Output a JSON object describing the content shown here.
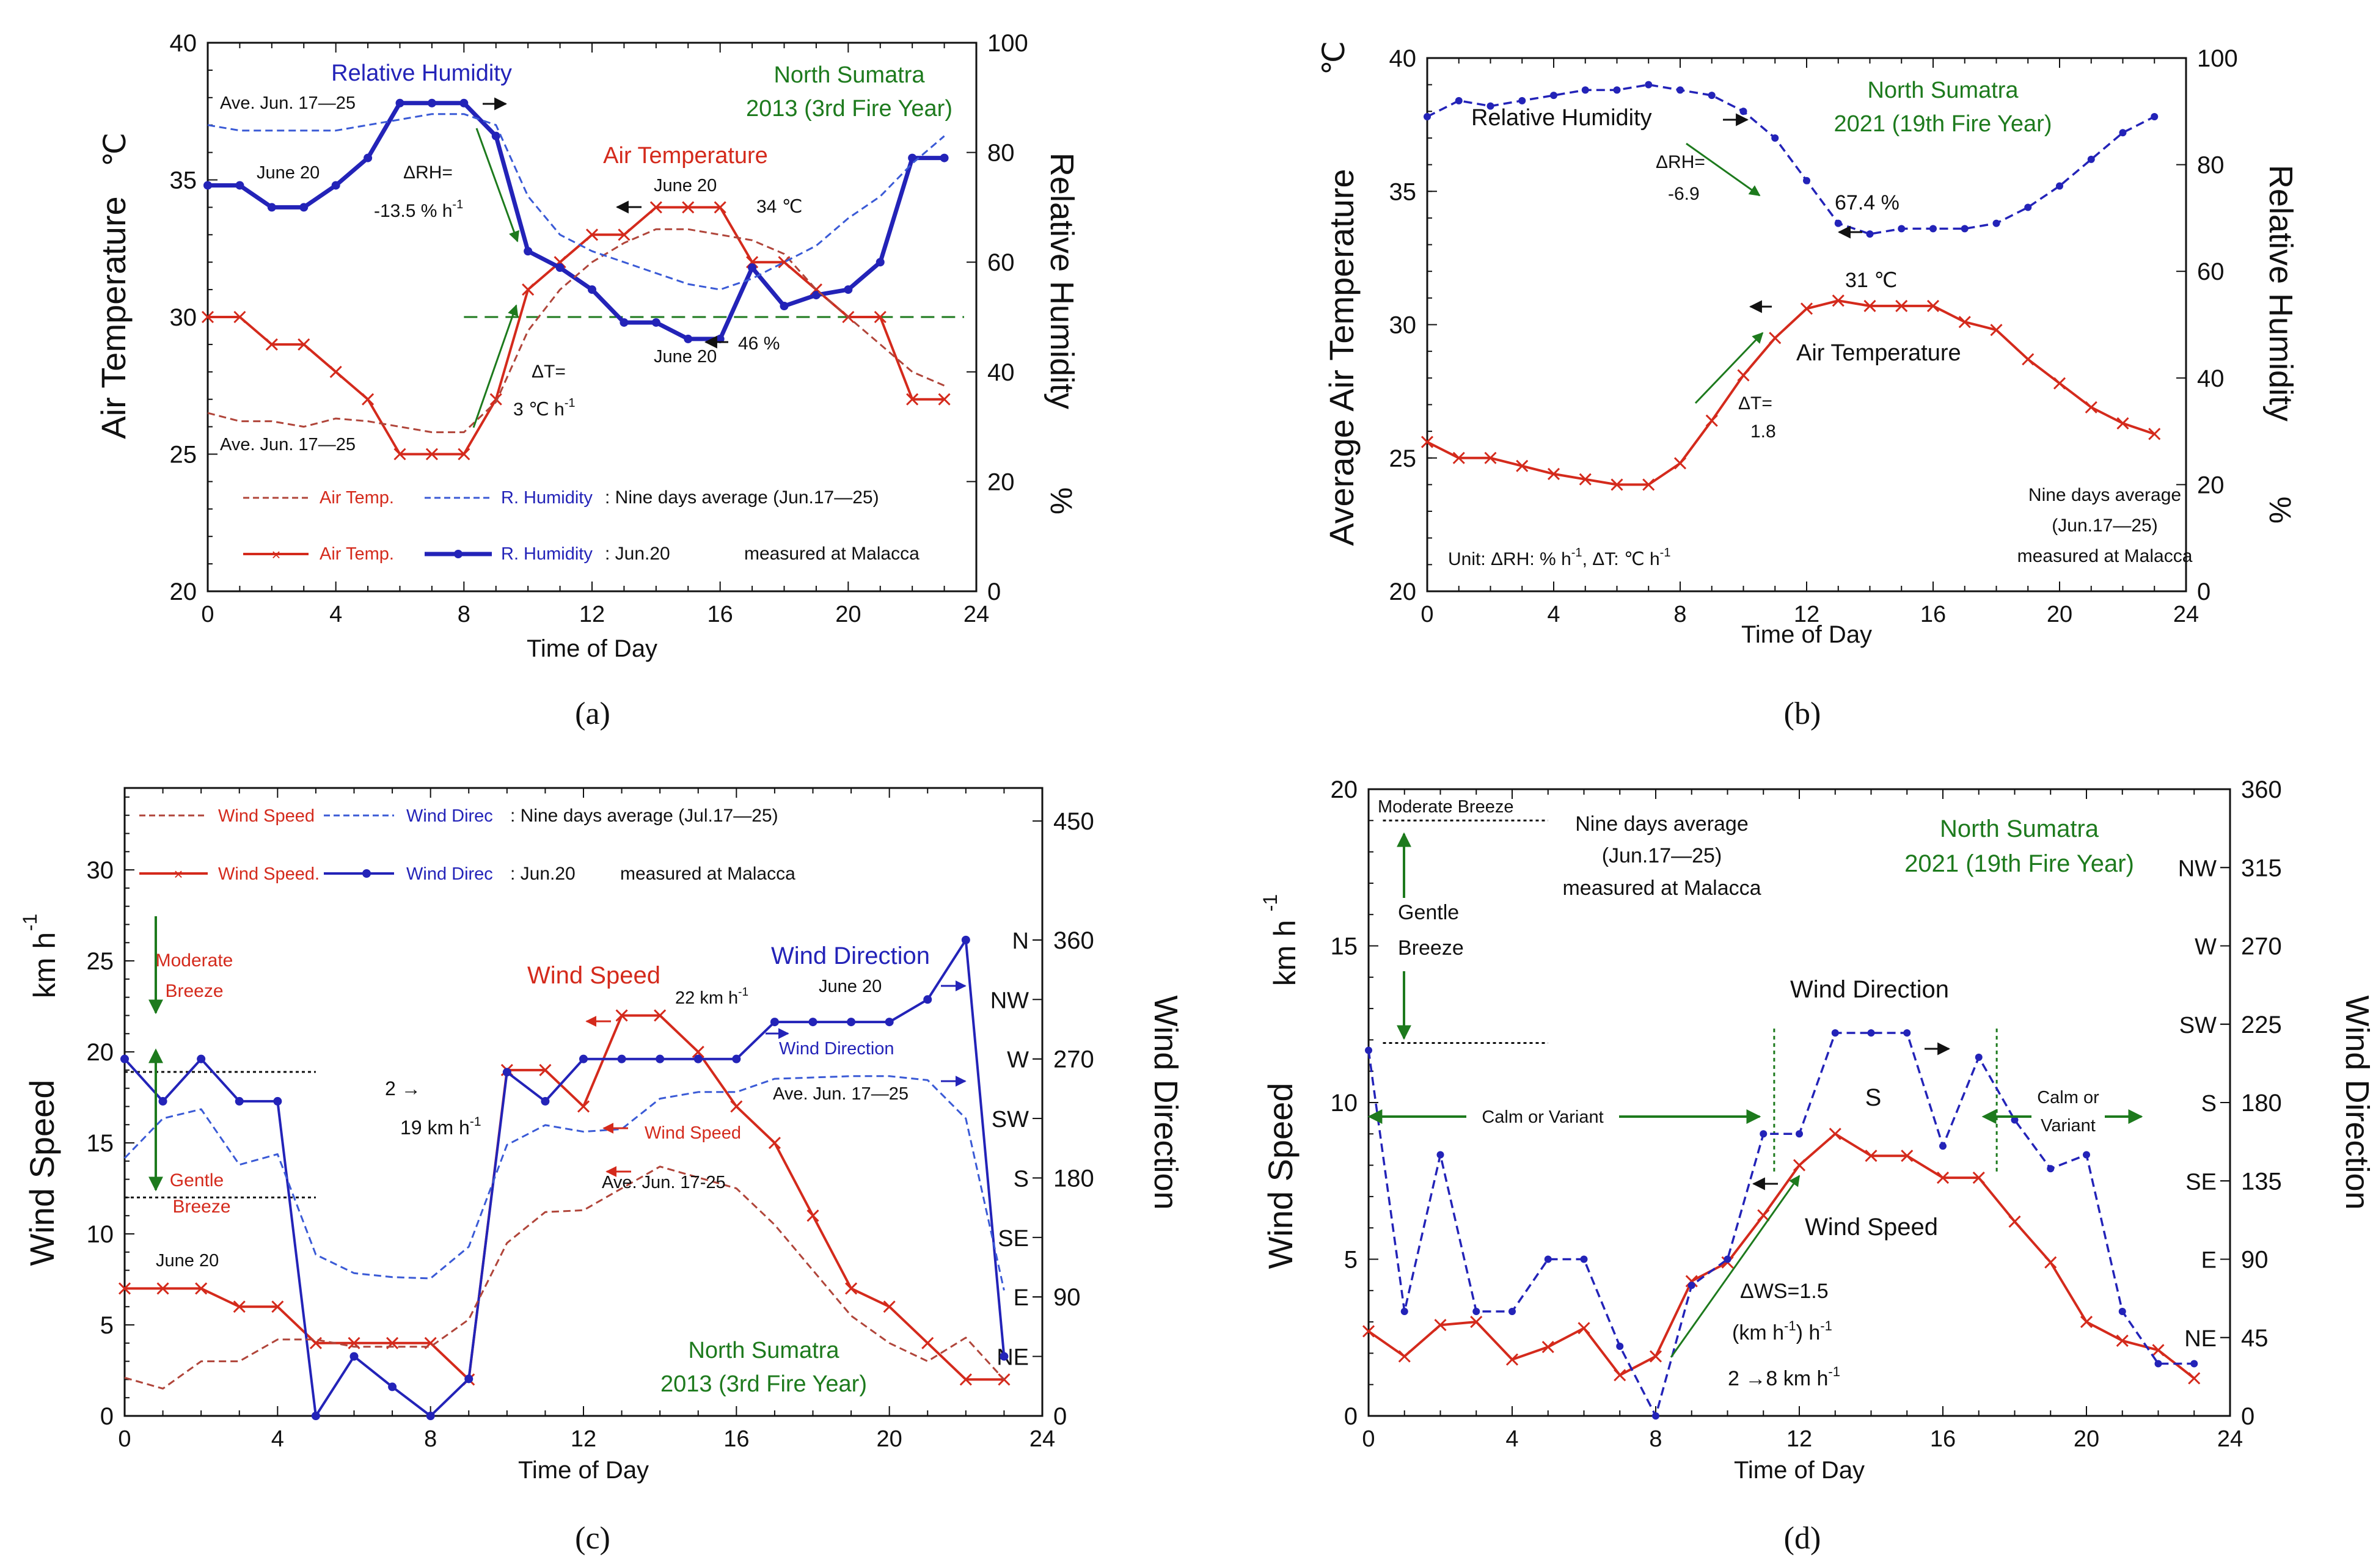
{
  "colors": {
    "red": "#d42a1c",
    "blue": "#2323b8",
    "green": "#1d7a1d",
    "avg_red": "#b0453a",
    "avg_blue": "#3a5ad6",
    "black": "#111111"
  },
  "chart_data": [
    {
      "id": "a",
      "type": "line",
      "panel_label": "(a)",
      "xlabel": "Time of Day",
      "ylabel": "Air Temperature",
      "ylabel_unit": "℃",
      "y2label": "Relative Humidity",
      "y2label_unit": "%",
      "xlim": [
        0,
        24
      ],
      "ylim": [
        20,
        40
      ],
      "y2lim": [
        0,
        100
      ],
      "xticks": [
        "0",
        "4",
        "8",
        "12",
        "16",
        "20",
        "24"
      ],
      "yticks": [
        "20",
        "25",
        "30",
        "35",
        "40"
      ],
      "y2ticks": [
        "0",
        "20",
        "40",
        "60",
        "80",
        "100"
      ],
      "x": [
        0,
        1,
        2,
        3,
        4,
        5,
        6,
        7,
        8,
        9,
        10,
        11,
        12,
        13,
        14,
        15,
        16,
        17,
        18,
        19,
        20,
        21,
        22,
        23
      ],
      "series": [
        {
          "name": "Air Temp. (Jun.20)",
          "axis": "left",
          "style": "solid-x",
          "color": "red",
          "values": [
            30,
            30,
            29,
            29,
            28,
            27,
            25,
            25,
            25,
            27,
            31,
            32,
            33,
            33,
            34,
            34,
            34,
            32,
            32,
            31,
            30,
            30,
            27,
            27
          ]
        },
        {
          "name": "R. Humidity (Jun.20)",
          "axis": "right",
          "style": "solid-dot",
          "color": "blue",
          "values": [
            74,
            74,
            70,
            70,
            74,
            79,
            89,
            89,
            89,
            83,
            62,
            59,
            55,
            49,
            49,
            46,
            46,
            59,
            52,
            54,
            55,
            60,
            79,
            79
          ]
        },
        {
          "name": "Air Temp. (nine days average)",
          "axis": "left",
          "style": "dashed",
          "color": "avg_red",
          "values": [
            26.5,
            26.2,
            26.2,
            26.0,
            26.3,
            26.2,
            26.0,
            25.8,
            25.8,
            26.9,
            29.5,
            31.0,
            32.0,
            32.7,
            33.2,
            33.2,
            33.0,
            32.8,
            32.3,
            31.0,
            30.0,
            29.0,
            28.0,
            27.5
          ]
        },
        {
          "name": "R. Humidity (nine days average)",
          "axis": "right",
          "style": "dashed",
          "color": "avg_blue",
          "values": [
            85,
            84,
            84,
            84,
            84,
            85,
            86,
            87,
            87,
            85,
            72,
            65,
            62,
            60,
            58,
            56,
            55,
            57,
            60,
            63,
            68,
            72,
            78,
            83
          ]
        }
      ],
      "hline": {
        "axis": "left",
        "value": 30,
        "color": "green"
      },
      "annotations": {
        "title_rh": "Relative Humidity",
        "title_at": "Air Temperature",
        "region_1": "North Sumatra",
        "region_2": "2013 (3rd Fire Year)",
        "ave_top": "Ave. Jun. 17—25",
        "ave_bottom": "Ave. Jun. 17—25",
        "june20_a": "June 20",
        "june20_b": "June 20",
        "june20_c": "June 20",
        "drh_1": "ΔRH=",
        "drh_2": "-13.5 % h",
        "drh_sup": "-1",
        "dt_1": "ΔT=",
        "dt_2": "3 ℃ h",
        "dt_sup": "-1",
        "peak_t": "34 ℃",
        "min_rh": "46 %",
        "legend_avg_t": "Air Temp.",
        "legend_avg_rh": "R. Humidity",
        "legend_avg_txt": ": Nine days average (Jun.17—25)",
        "legend_day_t": "Air Temp.",
        "legend_day_rh": "R. Humidity",
        "legend_day_txt": ": Jun.20",
        "measured": "measured at Malacca"
      }
    },
    {
      "id": "b",
      "type": "line",
      "panel_label": "(b)",
      "xlabel": "Time of Day",
      "ylabel": "Average Air Temperature",
      "ylabel_unit": "℃",
      "y2label": "Relative Humidity",
      "y2label_unit": "%",
      "xlim": [
        0,
        24
      ],
      "ylim": [
        20,
        40
      ],
      "y2lim": [
        0,
        100
      ],
      "xticks": [
        "0",
        "4",
        "8",
        "12",
        "16",
        "20",
        "24"
      ],
      "yticks": [
        "20",
        "25",
        "30",
        "35",
        "40"
      ],
      "y2ticks": [
        "0",
        "20",
        "40",
        "60",
        "80",
        "100"
      ],
      "x": [
        0,
        1,
        2,
        3,
        4,
        5,
        6,
        7,
        8,
        9,
        10,
        11,
        12,
        13,
        14,
        15,
        16,
        17,
        18,
        19,
        20,
        21,
        22,
        23
      ],
      "series": [
        {
          "name": "Air Temperature",
          "axis": "left",
          "style": "solid-x",
          "color": "red",
          "values": [
            25.6,
            25.0,
            25.0,
            24.7,
            24.4,
            24.2,
            24.0,
            24.0,
            24.8,
            26.4,
            28.1,
            29.5,
            30.6,
            30.9,
            30.7,
            30.7,
            30.7,
            30.1,
            29.8,
            28.7,
            27.8,
            26.9,
            26.3,
            25.9
          ]
        },
        {
          "name": "Relative Humidity",
          "axis": "right",
          "style": "dashed-dot",
          "color": "blue",
          "values": [
            89,
            92,
            91,
            92,
            93,
            94,
            94,
            95,
            94,
            93,
            90,
            85,
            77,
            69,
            67,
            68,
            68,
            68,
            69,
            72,
            76,
            81,
            86,
            89
          ]
        }
      ],
      "annotations": {
        "region_1": "North Sumatra",
        "region_2": "2021 (19th Fire Year)",
        "title_rh": "Relative Humidity",
        "title_at": "Air Temperature",
        "drh_1": "ΔRH=",
        "drh_2": "-6.9",
        "dt_1": "ΔT=",
        "dt_2": "1.8",
        "min_rh": "67.4 %",
        "peak_t": "31 ℃",
        "unit_note": "Unit: ΔRH:  % h",
        "unit_sup1": "-1",
        "unit_note_2": ", ΔT: ℃ h",
        "unit_sup2": "-1",
        "avg_1": "Nine days average",
        "avg_2": "(Jun.17—25)",
        "measured": "measured at Malacca"
      }
    },
    {
      "id": "c",
      "type": "line",
      "panel_label": "(c)",
      "xlabel": "Time of Day",
      "ylabel": "Wind Speed",
      "ylabel_unit": "km h",
      "y2label": "Wind Direction",
      "xlim": [
        0,
        24
      ],
      "ylim": [
        0,
        34.5
      ],
      "y2lim": [
        0,
        475
      ],
      "xticks": [
        "0",
        "4",
        "8",
        "12",
        "16",
        "20",
        "24"
      ],
      "yticks": [
        "0",
        "5",
        "10",
        "15",
        "20",
        "25",
        "30"
      ],
      "y2ticks": [
        "0",
        "90",
        "180",
        "270",
        "360",
        "450"
      ],
      "compass": [
        {
          "label": "NE",
          "deg": 45
        },
        {
          "label": "E",
          "deg": 90
        },
        {
          "label": "SE",
          "deg": 135
        },
        {
          "label": "S",
          "deg": 180
        },
        {
          "label": "SW",
          "deg": 225
        },
        {
          "label": "W",
          "deg": 270
        },
        {
          "label": "NW",
          "deg": 315
        },
        {
          "label": "N",
          "deg": 360
        }
      ],
      "x": [
        0,
        1,
        2,
        3,
        4,
        5,
        6,
        7,
        8,
        9,
        10,
        11,
        12,
        13,
        14,
        15,
        16,
        17,
        18,
        19,
        20,
        21,
        22,
        23
      ],
      "series": [
        {
          "name": "Wind Speed (Jun.20)",
          "axis": "left",
          "style": "solid-x",
          "color": "red",
          "values": [
            7,
            7,
            7,
            6,
            6,
            4,
            4,
            4,
            4,
            2,
            19,
            19,
            17,
            22,
            22,
            20,
            17,
            15,
            11,
            7,
            6,
            4,
            2,
            2
          ]
        },
        {
          "name": "Wind Direc (Jun.20)",
          "axis": "right",
          "style": "solid-dot",
          "color": "blue",
          "values": [
            270,
            238,
            270,
            238,
            238,
            0,
            45,
            22,
            0,
            28,
            260,
            238,
            270,
            270,
            270,
            270,
            270,
            298,
            298,
            298,
            298,
            315,
            360,
            45
          ]
        },
        {
          "name": "Wind Speed (nine days average)",
          "axis": "left",
          "style": "dashed",
          "color": "avg_red",
          "values": [
            2.1,
            1.5,
            3.0,
            3.0,
            4.2,
            4.2,
            3.8,
            3.8,
            3.8,
            5.3,
            9.5,
            11.2,
            11.3,
            12.5,
            13.7,
            13.1,
            12.5,
            10.5,
            8.0,
            5.5,
            4.0,
            3.0,
            4.3,
            2.0
          ]
        },
        {
          "name": "Wind Direc (nine days average)",
          "axis": "right",
          "style": "dashed",
          "color": "avg_blue",
          "values": [
            195,
            225,
            232,
            190,
            198,
            122,
            108,
            105,
            104,
            128,
            205,
            220,
            215,
            217,
            240,
            245,
            245,
            255,
            256,
            257,
            257,
            254,
            225,
            95
          ]
        }
      ],
      "hlines": [
        {
          "axis": "left",
          "value": 18.9,
          "x1": 0,
          "x2": 5
        },
        {
          "axis": "left",
          "value": 12,
          "x1": 0,
          "x2": 5
        }
      ],
      "annotations": {
        "legend_avg_ws": "Wind Speed",
        "legend_avg_wd": "Wind Direc",
        "legend_avg_txt": ": Nine days average (Jul.17—25)",
        "legend_day_ws": "Wind Speed.",
        "legend_day_wd": "Wind Direc",
        "legend_day_txt": ": Jun.20",
        "measured": "measured at Malacca",
        "moderate_1": "Moderate",
        "moderate_2": "Breeze",
        "gentle_1": "Gentle",
        "gentle_2": "Breeze",
        "title_ws": "Wind Speed",
        "title_ws_small": "Wind Speed",
        "title_wd": "Wind Direction",
        "title_wd_small": "Wind Direction",
        "june20_ws": "June 20",
        "june20_wd": "June 20",
        "peak": "22 km h",
        "peak_sup": "-1",
        "jump_1": "2 →",
        "jump_2": "19 km h",
        "jump_sup": "-1",
        "ave_wd": "Ave. Jun. 17—25",
        "ave_ws": "Ave. Jun. 17-25",
        "region_1": "North Sumatra",
        "region_2": "2013 (3rd Fire Year)",
        "ylabel_sup": "-1"
      }
    },
    {
      "id": "d",
      "type": "line",
      "panel_label": "(d)",
      "xlabel": "Time of Day",
      "ylabel": "Wind Speed",
      "ylabel_unit": "km h",
      "y2label": "Wind Direction",
      "xlim": [
        0,
        24
      ],
      "ylim": [
        0,
        20
      ],
      "y2lim": [
        0,
        360
      ],
      "xticks": [
        "0",
        "4",
        "8",
        "12",
        "16",
        "20",
        "24"
      ],
      "yticks": [
        "0",
        "5",
        "10",
        "15",
        "20"
      ],
      "y2ticks": [
        "0",
        "45",
        "90",
        "135",
        "180",
        "225",
        "270",
        "315",
        "360"
      ],
      "compass": [
        {
          "label": "NE",
          "deg": 45
        },
        {
          "label": "E",
          "deg": 90
        },
        {
          "label": "SE",
          "deg": 135
        },
        {
          "label": "S",
          "deg": 180
        },
        {
          "label": "SW",
          "deg": 225
        },
        {
          "label": "W",
          "deg": 270
        },
        {
          "label": "NW",
          "deg": 315
        }
      ],
      "x": [
        0,
        1,
        2,
        3,
        4,
        5,
        6,
        7,
        8,
        9,
        10,
        11,
        12,
        13,
        14,
        15,
        16,
        17,
        18,
        19,
        20,
        21,
        22,
        23
      ],
      "series": [
        {
          "name": "Wind Speed",
          "axis": "left",
          "style": "solid-x",
          "color": "red",
          "values": [
            2.7,
            1.9,
            2.9,
            3.0,
            1.8,
            2.2,
            2.8,
            1.3,
            1.9,
            4.3,
            4.9,
            6.4,
            8.0,
            9.0,
            8.3,
            8.3,
            7.6,
            7.6,
            6.2,
            4.9,
            3.0,
            2.4,
            2.1,
            1.2
          ]
        },
        {
          "name": "Wind Direction",
          "axis": "right",
          "style": "dashed-dot",
          "color": "blue",
          "values": [
            210,
            60,
            150,
            60,
            60,
            90,
            90,
            40,
            0,
            75,
            90,
            162,
            162,
            220,
            220,
            220,
            155,
            206,
            170,
            142,
            150,
            60,
            30,
            30
          ]
        }
      ],
      "hlines": [
        {
          "axis": "left",
          "value": 19,
          "x1": 0.4,
          "x2": 5
        },
        {
          "axis": "left",
          "value": 11.9,
          "x1": 0.4,
          "x2": 5
        }
      ],
      "vlines": [
        {
          "x": 11.3,
          "y1": 7.8,
          "y2": 12.4
        },
        {
          "x": 17.5,
          "y1": 7.8,
          "y2": 12.4
        }
      ],
      "annotations": {
        "moderate": "Moderate Breeze",
        "gentle_1": "Gentle",
        "gentle_2": "Breeze",
        "avg_1": "Nine days average",
        "avg_2": "(Jun.17—25)",
        "measured": "measured at Malacca",
        "region_1": "North Sumatra",
        "region_2": "2021 (19th Fire Year)",
        "title_wd": "Wind Direction",
        "sector": "S",
        "calm_1": "Calm or Variant",
        "calm_2a": "Calm or",
        "calm_2b": "Variant",
        "title_ws": "Wind Speed",
        "dws_1": "ΔWS=1.5",
        "dws_2a": "(km h",
        "dws_2sup": "-1",
        "dws_2b": ") h",
        "dws_2sup2": "-1",
        "dws_3": "2 →8 km h",
        "dws_3sup": "-1",
        "ylabel_sup": "-1"
      }
    }
  ]
}
